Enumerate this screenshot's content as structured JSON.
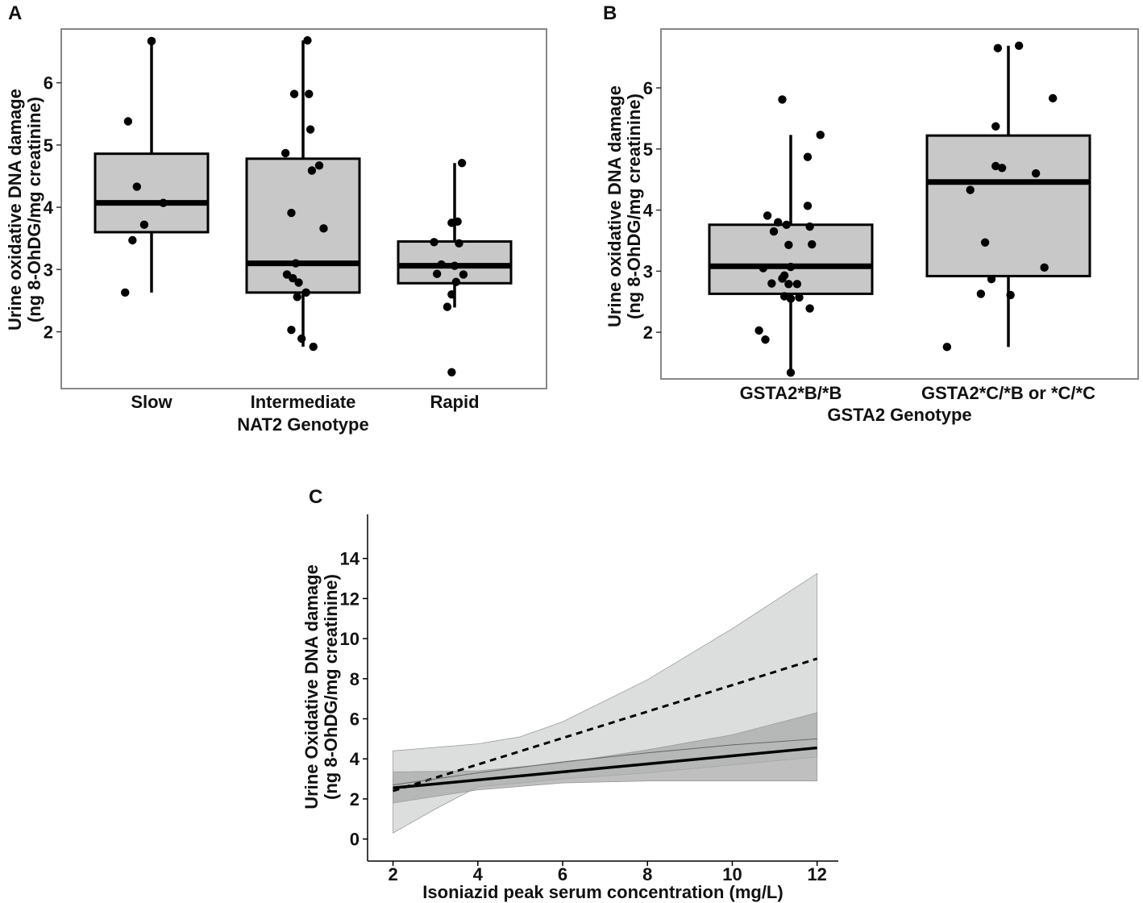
{
  "colors": {
    "box_fill": "#c8c8c8",
    "ink": "#000000",
    "band_light": "#dcdedd",
    "band_dark": "#aaaaaa",
    "frame": "#888888"
  },
  "chart_data": [
    {
      "id": "A",
      "panel_label": "A",
      "type": "boxplot",
      "ylim": [
        1.1,
        6.85
      ],
      "yticks": [
        2,
        3,
        4,
        5,
        6
      ],
      "ylabel_lines": [
        "Urine oxidative DNA damage",
        "(ng 8-OhDG/mg creatinine)"
      ],
      "xlabel": "NAT2 Genotype",
      "categories": [
        "Slow",
        "Intermediate",
        "Rapid"
      ],
      "boxes": [
        {
          "q1": 3.6,
          "median": 4.07,
          "q3": 4.86,
          "whisker_low": 2.63,
          "whisker_high": 6.68,
          "points": [
            [
              0.0,
              6.67
            ],
            [
              -0.16,
              5.38
            ],
            [
              -0.1,
              4.33
            ],
            [
              0.08,
              4.07
            ],
            [
              -0.05,
              3.72
            ],
            [
              -0.13,
              3.47
            ],
            [
              -0.18,
              2.63
            ],
            [
              0.0,
              6.67
            ]
          ]
        },
        {
          "q1": 2.63,
          "median": 3.1,
          "q3": 4.78,
          "whisker_low": 1.76,
          "whisker_high": 6.68,
          "points": [
            [
              0.03,
              6.68
            ],
            [
              -0.06,
              5.82
            ],
            [
              0.04,
              5.82
            ],
            [
              0.05,
              5.25
            ],
            [
              -0.12,
              4.87
            ],
            [
              0.06,
              4.59
            ],
            [
              0.11,
              4.67
            ],
            [
              -0.08,
              3.91
            ],
            [
              0.14,
              3.66
            ],
            [
              -0.05,
              3.1
            ],
            [
              -0.11,
              2.92
            ],
            [
              -0.07,
              2.86
            ],
            [
              -0.03,
              2.79
            ],
            [
              0.02,
              2.63
            ],
            [
              -0.04,
              2.56
            ],
            [
              -0.08,
              2.03
            ],
            [
              -0.01,
              1.89
            ],
            [
              0.07,
              1.76
            ]
          ]
        },
        {
          "q1": 2.78,
          "median": 3.06,
          "q3": 3.45,
          "whisker_low": 2.39,
          "whisker_high": 4.71,
          "points": [
            [
              0.05,
              4.71
            ],
            [
              0.02,
              3.77
            ],
            [
              -0.02,
              3.75
            ],
            [
              -0.14,
              3.44
            ],
            [
              0.03,
              3.42
            ],
            [
              -0.09,
              3.08
            ],
            [
              0.0,
              3.06
            ],
            [
              -0.12,
              2.93
            ],
            [
              0.06,
              2.92
            ],
            [
              0.01,
              2.8
            ],
            [
              -0.02,
              2.6
            ],
            [
              -0.05,
              2.4
            ],
            [
              -0.02,
              1.35
            ]
          ]
        }
      ]
    },
    {
      "id": "B",
      "panel_label": "B",
      "type": "boxplot",
      "ylim": [
        1.25,
        6.95
      ],
      "yticks": [
        2,
        3,
        4,
        5,
        6
      ],
      "ylabel_lines": [
        "Urine oxidative DNA damage",
        "(ng 8-OhDG/mg creatinine)"
      ],
      "xlabel": "GSTA2 Genotype",
      "categories": [
        "GSTA2*B/*B",
        "GSTA2*C/*B or *C/*C"
      ],
      "boxes": [
        {
          "q1": 2.63,
          "median": 3.08,
          "q3": 3.76,
          "whisker_low": 1.35,
          "whisker_high": 5.23,
          "points": [
            [
              -0.04,
              5.81
            ],
            [
              0.14,
              5.23
            ],
            [
              0.08,
              4.87
            ],
            [
              0.08,
              4.07
            ],
            [
              -0.11,
              3.91
            ],
            [
              -0.06,
              3.8
            ],
            [
              -0.02,
              3.76
            ],
            [
              0.09,
              3.73
            ],
            [
              -0.08,
              3.65
            ],
            [
              -0.01,
              3.43
            ],
            [
              0.1,
              3.44
            ],
            [
              -0.13,
              3.05
            ],
            [
              0.0,
              3.07
            ],
            [
              -0.03,
              2.93
            ],
            [
              -0.04,
              2.88
            ],
            [
              -0.09,
              2.8
            ],
            [
              -0.01,
              2.79
            ],
            [
              0.03,
              2.79
            ],
            [
              -0.03,
              2.59
            ],
            [
              0.04,
              2.57
            ],
            [
              0.0,
              2.55
            ],
            [
              0.09,
              2.39
            ],
            [
              -0.15,
              2.03
            ],
            [
              -0.12,
              1.88
            ],
            [
              0.0,
              1.34
            ]
          ]
        },
        {
          "q1": 2.92,
          "median": 4.46,
          "q3": 5.22,
          "whisker_low": 1.76,
          "whisker_high": 6.69,
          "points": [
            [
              -0.05,
              6.65
            ],
            [
              0.05,
              6.69
            ],
            [
              0.21,
              5.83
            ],
            [
              -0.06,
              5.37
            ],
            [
              -0.06,
              4.72
            ],
            [
              -0.03,
              4.69
            ],
            [
              0.13,
              4.6
            ],
            [
              -0.18,
              4.33
            ],
            [
              -0.11,
              3.47
            ],
            [
              0.17,
              3.06
            ],
            [
              -0.08,
              2.87
            ],
            [
              -0.13,
              2.63
            ],
            [
              0.01,
              2.61
            ],
            [
              -0.29,
              1.76
            ]
          ]
        }
      ]
    },
    {
      "id": "C",
      "panel_label": "C",
      "type": "line",
      "xlim": [
        1.4,
        12.5
      ],
      "ylim": [
        -1.1,
        16.2
      ],
      "xticks": [
        2,
        4,
        6,
        8,
        10,
        12
      ],
      "yticks": [
        0,
        2,
        4,
        6,
        8,
        10,
        12,
        14
      ],
      "ylabel_lines": [
        "Urine Oxidative DNA damage",
        "(ng 8-OhDG/mg creatinine)"
      ],
      "xlabel": "Isoniazid peak serum concentration (mg/L)",
      "bands": [
        {
          "name": "dashed-ci",
          "upper": [
            [
              2,
              4.4
            ],
            [
              4,
              4.75
            ],
            [
              5,
              5.1
            ],
            [
              6,
              5.85
            ],
            [
              8,
              7.95
            ],
            [
              10,
              10.5
            ],
            [
              12,
              13.25
            ]
          ],
          "lower": [
            [
              2,
              0.3
            ],
            [
              3,
              1.5
            ],
            [
              4,
              2.6
            ],
            [
              6,
              3.0
            ],
            [
              8,
              3.3
            ],
            [
              10,
              3.7
            ],
            [
              12,
              4.1
            ]
          ]
        },
        {
          "name": "solid-ci",
          "upper": [
            [
              2,
              3.35
            ],
            [
              4,
              3.4
            ],
            [
              6,
              3.8
            ],
            [
              8,
              4.45
            ],
            [
              10,
              5.2
            ],
            [
              12,
              6.3
            ]
          ],
          "lower": [
            [
              2,
              1.8
            ],
            [
              4,
              2.45
            ],
            [
              6,
              2.8
            ],
            [
              8,
              2.9
            ],
            [
              10,
              2.9
            ],
            [
              12,
              2.9
            ]
          ]
        }
      ],
      "series": [
        {
          "name": "dashed",
          "style": "dashed",
          "points": [
            [
              2,
              2.4
            ],
            [
              12,
              9.0
            ]
          ]
        },
        {
          "name": "solid",
          "style": "solid",
          "points": [
            [
              2,
              2.55
            ],
            [
              4,
              2.95
            ],
            [
              6,
              3.35
            ],
            [
              8,
              3.75
            ],
            [
              10,
              4.15
            ],
            [
              12,
              4.55
            ]
          ]
        },
        {
          "name": "thin-upper",
          "style": "thin",
          "points": [
            [
              2,
              2.7
            ],
            [
              4,
              3.3
            ],
            [
              6,
              3.85
            ],
            [
              8,
              4.3
            ],
            [
              10,
              4.7
            ],
            [
              12,
              5.0
            ]
          ]
        }
      ]
    }
  ]
}
